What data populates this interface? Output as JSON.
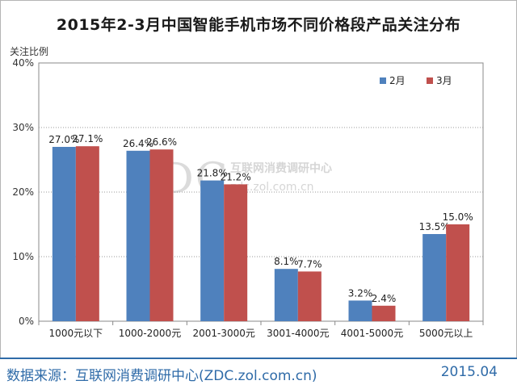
{
  "chart_data": {
    "type": "bar",
    "title": "2015年2-3月中国智能手机市场不同价格段产品关注分布",
    "ylabel": "关注比例",
    "xlabel": "",
    "categories": [
      "1000元以下",
      "1000-2000元",
      "2001-3000元",
      "3001-4000元",
      "4001-5000元",
      "5000元以上"
    ],
    "series": [
      {
        "name": "2月",
        "color": "#4f81bd",
        "values": [
          27.0,
          26.4,
          21.8,
          8.1,
          3.2,
          13.5
        ]
      },
      {
        "name": "3月",
        "color": "#c0504d",
        "values": [
          27.1,
          26.6,
          21.2,
          7.7,
          2.4,
          15.0
        ]
      }
    ],
    "ylim": [
      0,
      40
    ],
    "yticks": [
      "0%",
      "10%",
      "20%",
      "30%",
      "40%"
    ],
    "grid": true,
    "legend": "top-right"
  },
  "watermark": {
    "logo": "ZDC",
    "name": "互联网消费调研中心",
    "url": "zdc.zol.com.cn"
  },
  "footer": {
    "source": "数据来源：互联网消费调研中心(ZDC.zol.com.cn)",
    "date": "2015.04"
  }
}
